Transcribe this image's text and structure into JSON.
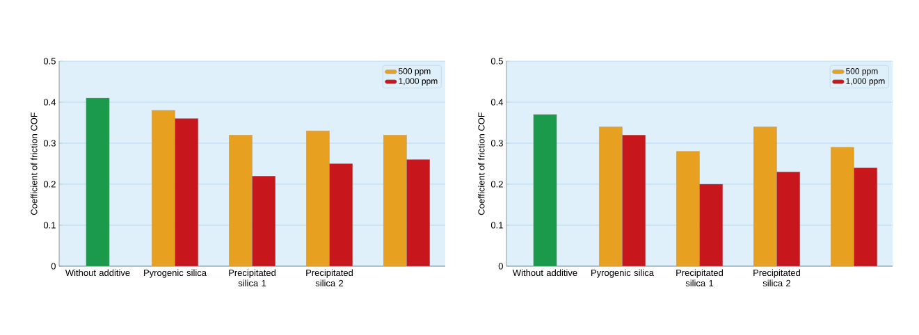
{
  "chart_data": [
    {
      "type": "bar",
      "ylabel": "Coefficient of friction COF",
      "categories": [
        "Without additive",
        "Pyrogenic silica",
        "Precipitated silica 1",
        "Precipitated silica 2",
        null
      ],
      "series": [
        {
          "color": "#1a9a4a",
          "values": [
            0.41,
            null,
            null,
            null,
            null
          ]
        },
        {
          "name": "500 ppm",
          "color": "#e8a020",
          "values": [
            null,
            0.38,
            0.32,
            0.33,
            0.32
          ]
        },
        {
          "name": "1,000 ppm",
          "color": "#c8161d",
          "values": [
            null,
            0.36,
            0.22,
            0.25,
            0.26
          ]
        }
      ],
      "ylim": [
        0,
        0.5
      ],
      "yticks": [
        0,
        0.1,
        0.2,
        0.3,
        0.4,
        0.5
      ],
      "grid": "y",
      "legend": "top right"
    },
    {
      "type": "bar",
      "ylabel": "Coefficient of friction COF",
      "categories": [
        "Without additive",
        "Pyrogenic silica",
        "Precipitated silica 1",
        "Precipitated silica 2",
        null
      ],
      "series": [
        {
          "color": "#1a9a4a",
          "values": [
            0.37,
            null,
            null,
            null,
            null
          ]
        },
        {
          "name": "500 ppm",
          "color": "#e8a020",
          "values": [
            null,
            0.34,
            0.28,
            0.34,
            0.29
          ]
        },
        {
          "name": "1,000 ppm",
          "color": "#c8161d",
          "values": [
            null,
            0.32,
            0.2,
            0.23,
            0.24
          ]
        }
      ],
      "ylim": [
        0,
        0.5
      ],
      "yticks": [
        0,
        0.1,
        0.2,
        0.3,
        0.4,
        0.5
      ],
      "grid": "y",
      "legend": "top right"
    }
  ]
}
